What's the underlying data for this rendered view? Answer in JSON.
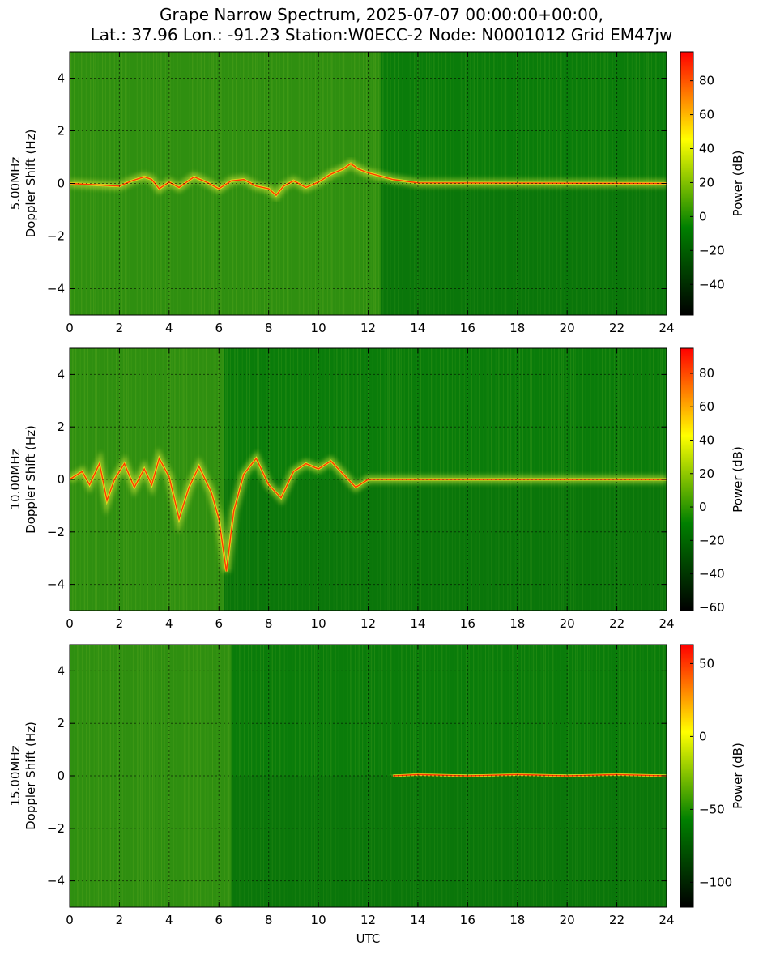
{
  "title_line1": "Grape Narrow Spectrum, 2025-07-07 00:00:00+00:00,",
  "title_line2": "Lat.: 37.96 Lon.: -91.23 Station:W0ECC-2 Node: N0001012 Grid EM47jw",
  "chart_data": [
    {
      "type": "heatmap",
      "ylabel": "5.00MHz\nDoppler Shift (Hz)",
      "xlabel": "",
      "x_ticks": [
        0,
        2,
        4,
        6,
        8,
        10,
        12,
        14,
        16,
        18,
        20,
        22,
        24
      ],
      "y_ticks": [
        -4,
        -2,
        0,
        2,
        4
      ],
      "xlim": [
        0,
        24
      ],
      "ylim": [
        -5,
        5
      ],
      "colorbar_label": "Power (dB)",
      "colorbar_ticks": [
        -40,
        -20,
        0,
        20,
        40,
        60,
        80
      ],
      "colorbar_range": [
        -58,
        97
      ],
      "grid": true,
      "colormap": [
        "#000000",
        "#008000",
        "#ffff00",
        "#ff0000"
      ],
      "carrier_trace": [
        [
          0,
          0
        ],
        [
          1,
          -0.05
        ],
        [
          2,
          -0.1
        ],
        [
          2.5,
          0.1
        ],
        [
          3,
          0.25
        ],
        [
          3.3,
          0.15
        ],
        [
          3.6,
          -0.2
        ],
        [
          4,
          0.05
        ],
        [
          4.4,
          -0.15
        ],
        [
          5,
          0.25
        ],
        [
          5.5,
          0.05
        ],
        [
          6,
          -0.2
        ],
        [
          6.5,
          0.1
        ],
        [
          7,
          0.15
        ],
        [
          7.5,
          -0.1
        ],
        [
          8,
          -0.2
        ],
        [
          8.3,
          -0.45
        ],
        [
          8.6,
          -0.1
        ],
        [
          9,
          0.1
        ],
        [
          9.5,
          -0.15
        ],
        [
          10,
          0.05
        ],
        [
          10.5,
          0.35
        ],
        [
          11,
          0.55
        ],
        [
          11.3,
          0.75
        ],
        [
          11.6,
          0.55
        ],
        [
          12,
          0.4
        ],
        [
          13,
          0.15
        ],
        [
          14,
          0.02
        ],
        [
          24,
          0
        ]
      ]
    },
    {
      "type": "heatmap",
      "ylabel": "10.00MHz\nDoppler Shift (Hz)",
      "xlabel": "",
      "x_ticks": [
        0,
        2,
        4,
        6,
        8,
        10,
        12,
        14,
        16,
        18,
        20,
        22,
        24
      ],
      "y_ticks": [
        -4,
        -2,
        0,
        2,
        4
      ],
      "xlim": [
        0,
        24
      ],
      "ylim": [
        -5,
        5
      ],
      "colorbar_label": "Power (dB)",
      "colorbar_ticks": [
        -60,
        -40,
        -20,
        0,
        20,
        40,
        60,
        80
      ],
      "colorbar_range": [
        -62,
        95
      ],
      "grid": true,
      "colormap": [
        "#000000",
        "#008000",
        "#ffff00",
        "#ff0000"
      ],
      "carrier_trace": [
        [
          0,
          0
        ],
        [
          0.5,
          0.3
        ],
        [
          0.8,
          -0.2
        ],
        [
          1.2,
          0.6
        ],
        [
          1.5,
          -0.8
        ],
        [
          1.8,
          0
        ],
        [
          2.2,
          0.6
        ],
        [
          2.6,
          -0.3
        ],
        [
          3,
          0.4
        ],
        [
          3.3,
          -0.2
        ],
        [
          3.6,
          0.8
        ],
        [
          4,
          0.1
        ],
        [
          4.4,
          -1.5
        ],
        [
          4.8,
          -0.3
        ],
        [
          5.2,
          0.5
        ],
        [
          5.7,
          -0.5
        ],
        [
          6,
          -1.5
        ],
        [
          6.3,
          -3.5
        ],
        [
          6.6,
          -1.2
        ],
        [
          7,
          0.2
        ],
        [
          7.5,
          0.8
        ],
        [
          8,
          -0.2
        ],
        [
          8.5,
          -0.7
        ],
        [
          9,
          0.3
        ],
        [
          9.5,
          0.6
        ],
        [
          10,
          0.4
        ],
        [
          10.5,
          0.7
        ],
        [
          11,
          0.2
        ],
        [
          11.5,
          -0.3
        ],
        [
          12,
          0
        ],
        [
          24,
          0
        ]
      ]
    },
    {
      "type": "heatmap",
      "ylabel": "15.00MHz\nDoppler Shift (Hz)",
      "xlabel": "UTC",
      "x_ticks": [
        0,
        2,
        4,
        6,
        8,
        10,
        12,
        14,
        16,
        18,
        20,
        22,
        24
      ],
      "y_ticks": [
        -4,
        -2,
        0,
        2,
        4
      ],
      "xlim": [
        0,
        24
      ],
      "ylim": [
        -5,
        5
      ],
      "colorbar_label": "Power (dB)",
      "colorbar_ticks": [
        -100,
        -50,
        0,
        50
      ],
      "colorbar_range": [
        -117,
        63
      ],
      "grid": true,
      "colormap": [
        "#000000",
        "#008000",
        "#ffff00",
        "#ff0000"
      ],
      "carrier_trace": [
        [
          13,
          0
        ],
        [
          14,
          0.05
        ],
        [
          16,
          0
        ],
        [
          18,
          0.05
        ],
        [
          20,
          0
        ],
        [
          22,
          0.05
        ],
        [
          24,
          0
        ]
      ]
    }
  ]
}
